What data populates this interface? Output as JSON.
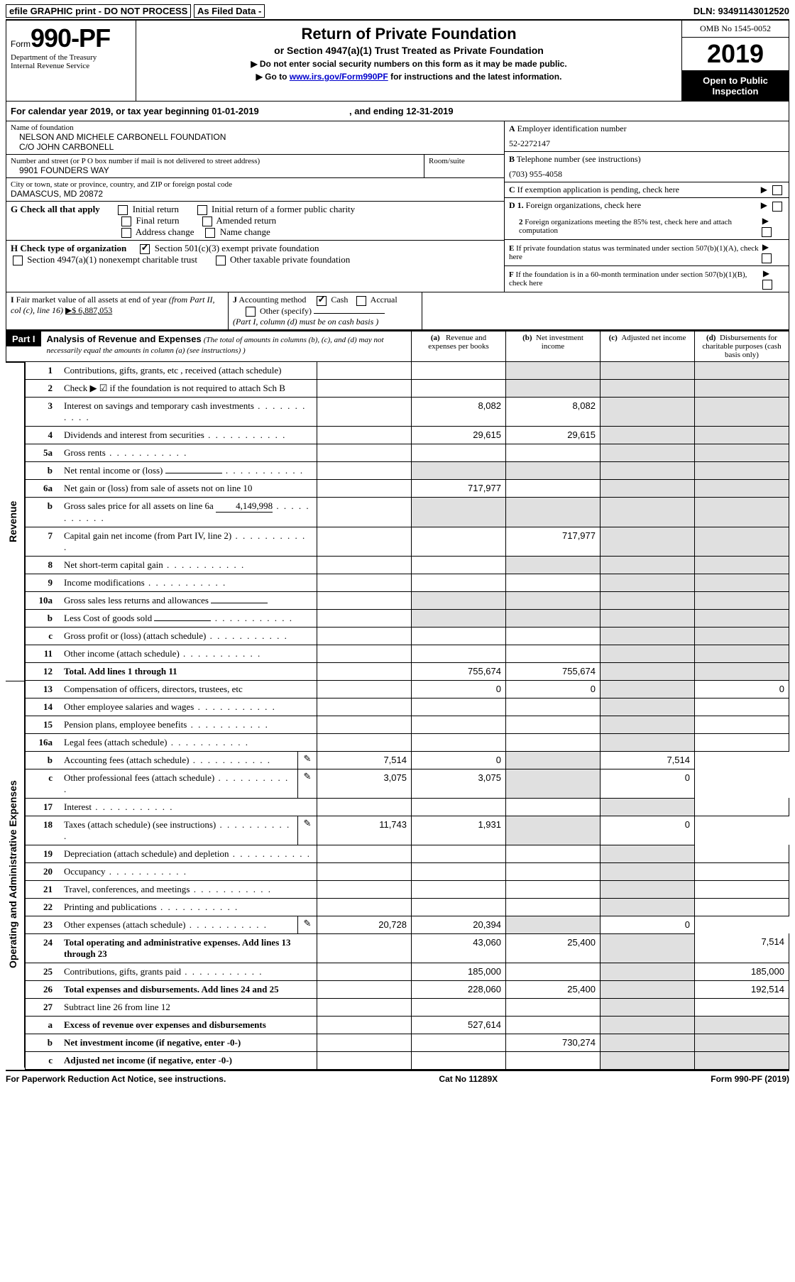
{
  "top": {
    "efile": "efile GRAPHIC print - DO NOT PROCESS",
    "asfiled": "As Filed Data -",
    "dln_label": "DLN:",
    "dln": "93491143012520"
  },
  "header": {
    "form_small": "Form",
    "form_big": "990-PF",
    "dept1": "Department of the Treasury",
    "dept2": "Internal Revenue Service",
    "title": "Return of Private Foundation",
    "subtitle": "or Section 4947(a)(1) Trust Treated as Private Foundation",
    "note1": "▶ Do not enter social security numbers on this form as it may be made public.",
    "note2": "▶ Go to www.irs.gov/Form990PF for instructions and the latest information.",
    "link": "www.irs.gov/Form990PF",
    "omb": "OMB No 1545-0052",
    "year": "2019",
    "open": "Open to Public Inspection"
  },
  "calyear": {
    "text1": "For calendar year 2019, or tax year beginning 01-01-2019",
    "text2": ", and ending 12-31-2019"
  },
  "info": {
    "name_label": "Name of foundation",
    "name1": "NELSON AND MICHELE CARBONELL FOUNDATION",
    "name2": "C/O JOHN CARBONELL",
    "street_label": "Number and street (or P O  box number if mail is not delivered to street address)",
    "room_label": "Room/suite",
    "street": "9901 FOUNDERS WAY",
    "city_label": "City or town, state or province, country, and ZIP or foreign postal code",
    "city": "DAMASCUS, MD  20872",
    "a_label": "A Employer identification number",
    "ein": "52-2272147",
    "b_label": "B Telephone number (see instructions)",
    "phone": "(703) 955-4058",
    "c_label": "C If exemption application is pending, check here",
    "g_label": "G Check all that apply",
    "g_opts": [
      "Initial return",
      "Initial return of a former public charity",
      "Final return",
      "Amended return",
      "Address change",
      "Name change"
    ],
    "h_label": "H Check type of organization",
    "h_opt1": "Section 501(c)(3) exempt private foundation",
    "h_opt2": "Section 4947(a)(1) nonexempt charitable trust",
    "h_opt3": "Other taxable private foundation",
    "d1": "D 1. Foreign organizations, check here",
    "d2": "2  Foreign organizations meeting the 85% test, check here and attach computation",
    "e": "E  If private foundation status was terminated under section 507(b)(1)(A), check here",
    "f": "F  If the foundation is in a 60-month termination under section 507(b)(1)(B), check here",
    "i_label": "I Fair market value of all assets at end of year (from Part II, col  (c), line 16)",
    "i_value": "▶$  6,887,053",
    "j_label": "J Accounting method",
    "j_cash": "Cash",
    "j_accrual": "Accrual",
    "j_other": "Other (specify)",
    "j_note": "(Part I, column (d) must be on cash basis )"
  },
  "part1": {
    "badge": "Part I",
    "title": "Analysis of Revenue and Expenses",
    "subtitle": "(The total of amounts in columns (b), (c), and (d) may not necessarily equal the amounts in column (a) (see instructions) )",
    "col_a": "(a)   Revenue and expenses per books",
    "col_b": "(b)  Net investment income",
    "col_c": "(c)  Adjusted net income",
    "col_d": "(d)  Disbursements for charitable purposes (cash basis only)"
  },
  "side_labels": {
    "revenue": "Revenue",
    "expenses": "Operating and Administrative Expenses"
  },
  "rows": [
    {
      "no": "1",
      "desc": "Contributions, gifts, grants, etc , received (attach schedule)",
      "a": "",
      "b": "",
      "c": "",
      "d": ""
    },
    {
      "no": "2",
      "desc": "Check ▶ ☑ if the foundation is not required to attach Sch  B",
      "a": "",
      "b": "",
      "c": "",
      "d": ""
    },
    {
      "no": "3",
      "desc": "Interest on savings and temporary cash investments",
      "a": "8,082",
      "b": "8,082",
      "c": "",
      "d": ""
    },
    {
      "no": "4",
      "desc": "Dividends and interest from securities",
      "a": "29,615",
      "b": "29,615",
      "c": "",
      "d": ""
    },
    {
      "no": "5a",
      "desc": "Gross rents",
      "a": "",
      "b": "",
      "c": "",
      "d": ""
    },
    {
      "no": "b",
      "desc": "Net rental income or (loss)",
      "inline": "",
      "a": "",
      "b": "",
      "c": "",
      "d": ""
    },
    {
      "no": "6a",
      "desc": "Net gain or (loss) from sale of assets not on line 10",
      "a": "717,977",
      "b": "",
      "c": "",
      "d": ""
    },
    {
      "no": "b",
      "desc": "Gross sales price for all assets on line 6a",
      "inline": "4,149,998",
      "a": "",
      "b": "",
      "c": "",
      "d": ""
    },
    {
      "no": "7",
      "desc": "Capital gain net income (from Part IV, line 2)",
      "a": "",
      "b": "717,977",
      "c": "",
      "d": ""
    },
    {
      "no": "8",
      "desc": "Net short-term capital gain",
      "a": "",
      "b": "",
      "c": "",
      "d": ""
    },
    {
      "no": "9",
      "desc": "Income modifications",
      "a": "",
      "b": "",
      "c": "",
      "d": ""
    },
    {
      "no": "10a",
      "desc": "Gross sales less returns and allowances",
      "inline": "",
      "a": "",
      "b": "",
      "c": "",
      "d": ""
    },
    {
      "no": "b",
      "desc": "Less  Cost of goods sold",
      "inline": "",
      "a": "",
      "b": "",
      "c": "",
      "d": ""
    },
    {
      "no": "c",
      "desc": "Gross profit or (loss) (attach schedule)",
      "a": "",
      "b": "",
      "c": "",
      "d": ""
    },
    {
      "no": "11",
      "desc": "Other income (attach schedule)",
      "a": "",
      "b": "",
      "c": "",
      "d": ""
    },
    {
      "no": "12",
      "desc": "Total. Add lines 1 through 11",
      "bold": true,
      "a": "755,674",
      "b": "755,674",
      "c": "",
      "d": ""
    },
    {
      "no": "13",
      "desc": "Compensation of officers, directors, trustees, etc",
      "a": "0",
      "b": "0",
      "c": "",
      "d": "0"
    },
    {
      "no": "14",
      "desc": "Other employee salaries and wages",
      "a": "",
      "b": "",
      "c": "",
      "d": ""
    },
    {
      "no": "15",
      "desc": "Pension plans, employee benefits",
      "a": "",
      "b": "",
      "c": "",
      "d": ""
    },
    {
      "no": "16a",
      "desc": "Legal fees (attach schedule)",
      "a": "",
      "b": "",
      "c": "",
      "d": ""
    },
    {
      "no": "b",
      "desc": "Accounting fees (attach schedule)",
      "icon": true,
      "a": "7,514",
      "b": "0",
      "c": "",
      "d": "7,514"
    },
    {
      "no": "c",
      "desc": "Other professional fees (attach schedule)",
      "icon": true,
      "a": "3,075",
      "b": "3,075",
      "c": "",
      "d": "0"
    },
    {
      "no": "17",
      "desc": "Interest",
      "a": "",
      "b": "",
      "c": "",
      "d": ""
    },
    {
      "no": "18",
      "desc": "Taxes (attach schedule) (see instructions)",
      "icon": true,
      "a": "11,743",
      "b": "1,931",
      "c": "",
      "d": "0"
    },
    {
      "no": "19",
      "desc": "Depreciation (attach schedule) and depletion",
      "a": "",
      "b": "",
      "c": "",
      "d": ""
    },
    {
      "no": "20",
      "desc": "Occupancy",
      "a": "",
      "b": "",
      "c": "",
      "d": ""
    },
    {
      "no": "21",
      "desc": "Travel, conferences, and meetings",
      "a": "",
      "b": "",
      "c": "",
      "d": ""
    },
    {
      "no": "22",
      "desc": "Printing and publications",
      "a": "",
      "b": "",
      "c": "",
      "d": ""
    },
    {
      "no": "23",
      "desc": "Other expenses (attach schedule)",
      "icon": true,
      "a": "20,728",
      "b": "20,394",
      "c": "",
      "d": "0"
    },
    {
      "no": "24",
      "desc": "Total operating and administrative expenses. Add lines 13 through 23",
      "bold": true,
      "a": "43,060",
      "b": "25,400",
      "c": "",
      "d": "7,514"
    },
    {
      "no": "25",
      "desc": "Contributions, gifts, grants paid",
      "a": "185,000",
      "b": "",
      "c": "",
      "d": "185,000"
    },
    {
      "no": "26",
      "desc": "Total expenses and disbursements. Add lines 24 and 25",
      "bold": true,
      "a": "228,060",
      "b": "25,400",
      "c": "",
      "d": "192,514"
    },
    {
      "no": "27",
      "desc": "Subtract line 26 from line 12",
      "a": "",
      "b": "",
      "c": "",
      "d": ""
    },
    {
      "no": "a",
      "desc": "Excess of revenue over expenses and disbursements",
      "bold": true,
      "a": "527,614",
      "b": "",
      "c": "",
      "d": ""
    },
    {
      "no": "b",
      "desc": "Net investment income (if negative, enter -0-)",
      "bold": true,
      "a": "",
      "b": "730,274",
      "c": "",
      "d": ""
    },
    {
      "no": "c",
      "desc": "Adjusted net income (if negative, enter -0-)",
      "bold": true,
      "a": "",
      "b": "",
      "c": "",
      "d": ""
    }
  ],
  "footer": {
    "left": "For Paperwork Reduction Act Notice, see instructions.",
    "mid": "Cat  No  11289X",
    "right": "Form 990-PF (2019)"
  }
}
